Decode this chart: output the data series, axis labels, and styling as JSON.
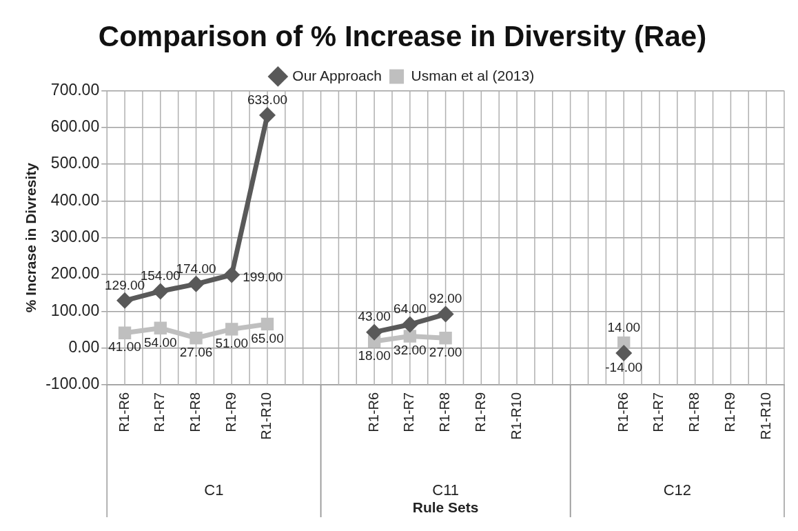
{
  "chart_data": {
    "type": "line",
    "title": "Comparison of % Increase in Diversity (Rae)",
    "xlabel": "Rule Sets",
    "ylabel": "% Incrase in Divresity",
    "categories": [
      "R1-R6",
      "R1-R7",
      "R1-R8",
      "R1-R9",
      "R1-R10",
      null,
      null,
      "R1-R6",
      "R1-R7",
      "R1-R8",
      "R1-R9",
      "R1-R10",
      null,
      null,
      "R1-R6",
      "R1-R7",
      "R1-R8",
      "R1-R9",
      "R1-R10"
    ],
    "series": [
      {
        "name": "Our Approach",
        "color": "#595959",
        "marker": "diamond",
        "values": [
          129,
          154,
          174,
          199,
          633,
          null,
          null,
          43,
          64,
          92,
          null,
          null,
          null,
          null,
          -14,
          null,
          null,
          null,
          null
        ],
        "value_labels": [
          "129.00",
          "154.00",
          "174.00",
          "199.00",
          "633.00",
          null,
          null,
          "43.00",
          "64.00",
          "92.00",
          null,
          null,
          null,
          null,
          "-14.00",
          null,
          null,
          null,
          null
        ]
      },
      {
        "name": "Usman et al (2013)",
        "color": "#bfbfbf",
        "marker": "square",
        "values": [
          41,
          54,
          27.06,
          51,
          65,
          null,
          null,
          18,
          32,
          27,
          null,
          null,
          null,
          null,
          14,
          null,
          null,
          null,
          null
        ],
        "value_labels": [
          "41.00",
          "54.00",
          "27.06",
          "51.00",
          "65.00",
          null,
          null,
          "18.00",
          "32.00",
          "27.00",
          null,
          null,
          null,
          null,
          "14.00",
          null,
          null,
          null,
          null
        ]
      }
    ],
    "annotations": [
      "C1",
      "C11",
      "C12"
    ],
    "ylim": [
      -100,
      700
    ],
    "yticks": [
      {
        "value": -100,
        "label": "-100.00"
      },
      {
        "value": 0,
        "label": "0.00"
      },
      {
        "value": 100,
        "label": "100.00"
      },
      {
        "value": 200,
        "label": "200.00"
      },
      {
        "value": 300,
        "label": "300.00"
      },
      {
        "value": 400,
        "label": "400.00"
      },
      {
        "value": 500,
        "label": "500.00"
      },
      {
        "value": 600,
        "label": "600.00"
      },
      {
        "value": 700,
        "label": "700.00"
      }
    ],
    "grid": true,
    "legend": "top"
  }
}
